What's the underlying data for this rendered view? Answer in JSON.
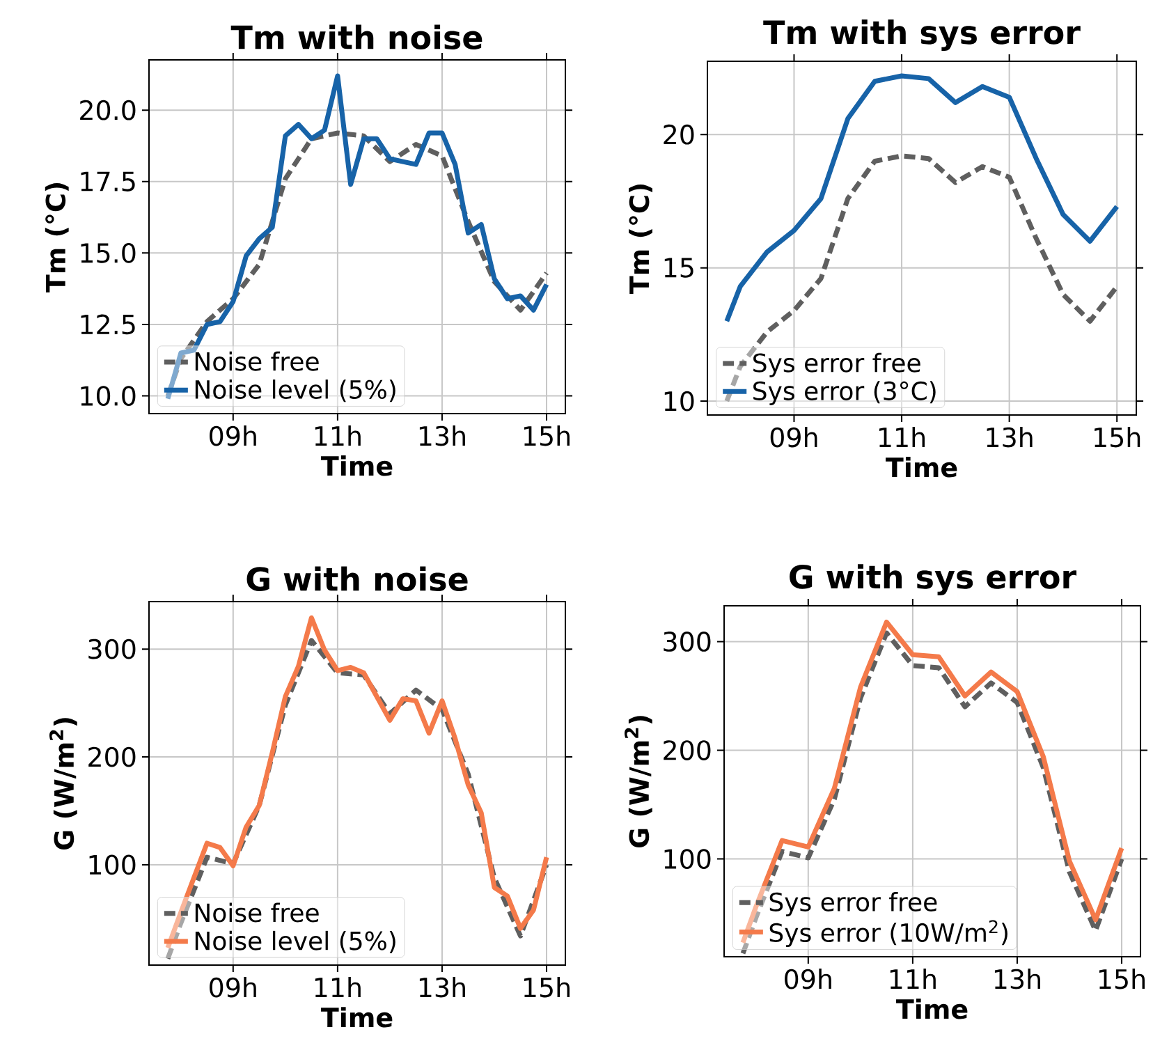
{
  "chart_data": [
    {
      "type": "line",
      "title": "Tm with noise",
      "xlabel": "Time",
      "ylabel": "Tm (°C)",
      "xlim": [
        7.39,
        15.36
      ],
      "ylim": [
        9.38,
        21.76
      ],
      "xticks": [
        {
          "value": 9,
          "label": "09h"
        },
        {
          "value": 11,
          "label": "11h"
        },
        {
          "value": 13,
          "label": "13h"
        },
        {
          "value": 15,
          "label": "15h"
        }
      ],
      "yticks": [
        {
          "value": 10,
          "label": "10.0"
        },
        {
          "value": 12.5,
          "label": "12.5"
        },
        {
          "value": 15,
          "label": "15.0"
        },
        {
          "value": 17.5,
          "label": "17.5"
        },
        {
          "value": 20,
          "label": "20.0"
        }
      ],
      "grid": true,
      "legend": "bottom left",
      "series": [
        {
          "name": "Noise free",
          "color": "#5f5f5f",
          "line_style": "dashed",
          "x": [
            7.75,
            8,
            8.5,
            9,
            9.5,
            10,
            10.5,
            11,
            11.5,
            12,
            12.5,
            13,
            13.5,
            14,
            14.5,
            15
          ],
          "values": [
            10.0,
            11.3,
            12.6,
            13.4,
            14.6,
            17.6,
            19.0,
            19.2,
            19.1,
            18.2,
            18.8,
            18.4,
            16.1,
            14.0,
            13.0,
            14.3
          ]
        },
        {
          "name": "Noise level (5%)",
          "color": "#1763a8",
          "line_style": "solid",
          "x": [
            7.75,
            8,
            8.25,
            8.5,
            8.75,
            9,
            9.25,
            9.5,
            9.75,
            10,
            10.25,
            10.5,
            10.75,
            11,
            11.25,
            11.5,
            11.75,
            12,
            12.25,
            12.5,
            12.75,
            13,
            13.25,
            13.5,
            13.75,
            14,
            14.25,
            14.5,
            14.75,
            15
          ],
          "values": [
            9.9,
            11.5,
            11.6,
            12.5,
            12.6,
            13.3,
            14.9,
            15.5,
            15.9,
            19.1,
            19.5,
            19.0,
            19.3,
            21.2,
            17.4,
            19.0,
            19.0,
            18.3,
            18.2,
            18.1,
            19.2,
            19.2,
            18.1,
            15.7,
            16.0,
            14.1,
            13.4,
            13.5,
            13.0,
            13.9
          ]
        }
      ]
    },
    {
      "type": "line",
      "title": "Tm with sys error",
      "xlabel": "Time",
      "ylabel": "Tm (°C)",
      "xlim": [
        7.39,
        15.36
      ],
      "ylim": [
        9.48,
        22.75
      ],
      "xticks": [
        {
          "value": 9,
          "label": "09h"
        },
        {
          "value": 11,
          "label": "11h"
        },
        {
          "value": 13,
          "label": "13h"
        },
        {
          "value": 15,
          "label": "15h"
        }
      ],
      "yticks": [
        10,
        15,
        20
      ],
      "grid": true,
      "legend": "bottom left",
      "series": [
        {
          "name": "Sys error free",
          "color": "#5f5f5f",
          "line_style": "dashed",
          "x": [
            7.75,
            8,
            8.5,
            9,
            9.5,
            10,
            10.5,
            11,
            11.5,
            12,
            12.5,
            13,
            13.5,
            14,
            14.5,
            15
          ],
          "values": [
            10.0,
            11.3,
            12.6,
            13.4,
            14.6,
            17.6,
            19.0,
            19.2,
            19.1,
            18.2,
            18.8,
            18.4,
            16.1,
            14.0,
            13.0,
            14.3
          ]
        },
        {
          "name": "Sys error (3°C)",
          "color": "#1763a8",
          "line_style": "solid",
          "x": [
            7.75,
            8,
            8.5,
            9,
            9.5,
            10,
            10.5,
            11,
            11.5,
            12,
            12.5,
            13,
            13.5,
            14,
            14.5,
            15
          ],
          "values": [
            13.0,
            14.3,
            15.6,
            16.4,
            17.6,
            20.6,
            22.0,
            22.2,
            22.1,
            21.2,
            21.8,
            21.4,
            19.1,
            17.0,
            16.0,
            17.3
          ]
        }
      ]
    },
    {
      "type": "line",
      "title": "G with noise",
      "xlabel": "Time",
      "ylabel": "G (W/m$^{2}$)",
      "xlim": [
        7.39,
        15.36
      ],
      "ylim": [
        7,
        344
      ],
      "xticks": [
        {
          "value": 9,
          "label": "09h"
        },
        {
          "value": 11,
          "label": "11h"
        },
        {
          "value": 13,
          "label": "13h"
        },
        {
          "value": 15,
          "label": "15h"
        }
      ],
      "yticks": [
        100,
        200,
        300
      ],
      "grid": true,
      "legend": "bottom left",
      "series": [
        {
          "name": "Noise free",
          "color": "#5f5f5f",
          "line_style": "dashed",
          "x": [
            7.75,
            8,
            8.5,
            9,
            9.5,
            10,
            10.5,
            11,
            11.5,
            12,
            12.5,
            13,
            13.5,
            14,
            14.5,
            15
          ],
          "values": [
            13,
            46,
            107,
            101,
            155,
            248,
            308,
            278,
            276,
            240,
            262,
            244,
            184,
            88,
            34,
            100
          ]
        },
        {
          "name": "Noise level (5%)",
          "color": "#f47a4a",
          "line_style": "solid",
          "x": [
            7.75,
            8,
            8.25,
            8.5,
            8.75,
            9,
            9.25,
            9.5,
            9.75,
            10,
            10.25,
            10.5,
            10.75,
            11,
            11.25,
            11.5,
            11.75,
            12,
            12.25,
            12.5,
            12.75,
            13,
            13.25,
            13.5,
            13.75,
            14,
            14.25,
            14.5,
            14.75,
            15
          ],
          "values": [
            23,
            56,
            88,
            120,
            116,
            99,
            135,
            155,
            204,
            256,
            284,
            329,
            299,
            280,
            283,
            278,
            256,
            234,
            254,
            252,
            222,
            252,
            217,
            174,
            148,
            79,
            71,
            41,
            58,
            107
          ]
        }
      ]
    },
    {
      "type": "line",
      "title": "G with sys error",
      "xlabel": "Time",
      "ylabel": "G (W/m$^{2}$)",
      "xlim": [
        7.39,
        15.36
      ],
      "ylim": [
        10,
        333
      ],
      "xticks": [
        {
          "value": 9,
          "label": "09h"
        },
        {
          "value": 11,
          "label": "11h"
        },
        {
          "value": 13,
          "label": "13h"
        },
        {
          "value": 15,
          "label": "15h"
        }
      ],
      "yticks": [
        100,
        200,
        300
      ],
      "grid": true,
      "legend": "bottom left",
      "series": [
        {
          "name": "Sys error free",
          "color": "#5f5f5f",
          "line_style": "dashed",
          "x": [
            7.75,
            8,
            8.5,
            9,
            9.5,
            10,
            10.5,
            11,
            11.5,
            12,
            12.5,
            13,
            13.5,
            14,
            14.5,
            15
          ],
          "values": [
            13,
            46,
            107,
            101,
            155,
            248,
            308,
            278,
            276,
            240,
            262,
            244,
            184,
            88,
            34,
            100
          ]
        },
        {
          "name": "Sys error (10W/m$^{2}$)",
          "color": "#f47a4a",
          "line_style": "solid",
          "x": [
            7.75,
            8,
            8.5,
            9,
            9.5,
            10,
            10.5,
            11,
            11.5,
            12,
            12.5,
            13,
            13.5,
            14,
            14.5,
            15
          ],
          "values": [
            23,
            56,
            117,
            111,
            165,
            258,
            318,
            288,
            286,
            250,
            272,
            254,
            194,
            98,
            44,
            110
          ]
        }
      ]
    }
  ]
}
